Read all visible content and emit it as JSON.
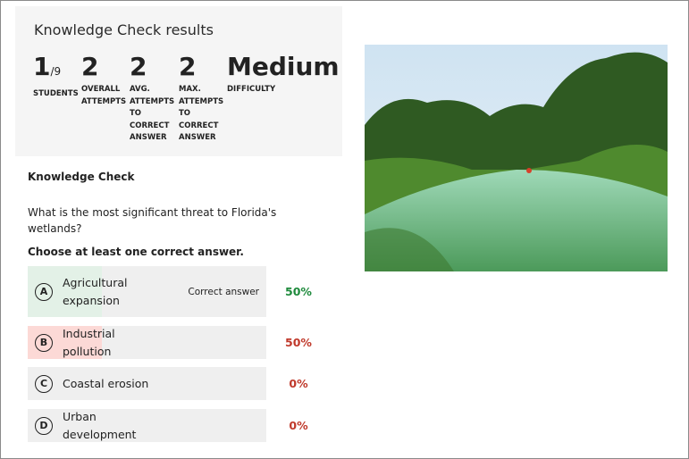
{
  "results": {
    "title": "Knowledge Check results",
    "stats": [
      {
        "value": "1",
        "suffix": "/9",
        "label": "Students"
      },
      {
        "value": "2",
        "label": "Overall attempts"
      },
      {
        "value": "2",
        "label": "Avg. attempts to correct answer"
      },
      {
        "value": "2",
        "label": "Max. attempts to correct answer"
      },
      {
        "value": "Medium",
        "label": "Difficulty"
      }
    ]
  },
  "question": {
    "heading": "Knowledge Check",
    "text": "What is the most significant threat to Florida's wetlands?",
    "instruction": "Choose at least one correct answer.",
    "options": [
      {
        "letter": "A",
        "text": "Agricultural expansion",
        "tag": "Correct answer",
        "percent": "50%",
        "share": 0.5,
        "status": "correct"
      },
      {
        "letter": "B",
        "text": "Industrial pollution",
        "percent": "50%",
        "share": 0.5,
        "status": "incorrect"
      },
      {
        "letter": "C",
        "text": "Coastal erosion",
        "percent": "0%",
        "share": 0,
        "status": "incorrect"
      },
      {
        "letter": "D",
        "text": "Urban development",
        "percent": "0%",
        "share": 0,
        "status": "incorrect"
      }
    ]
  },
  "colors": {
    "correct": "#1e8a3c",
    "incorrect": "#c0392b",
    "correct_fill": "#e3f1e7",
    "incorrect_fill": "#fcd9d6"
  }
}
